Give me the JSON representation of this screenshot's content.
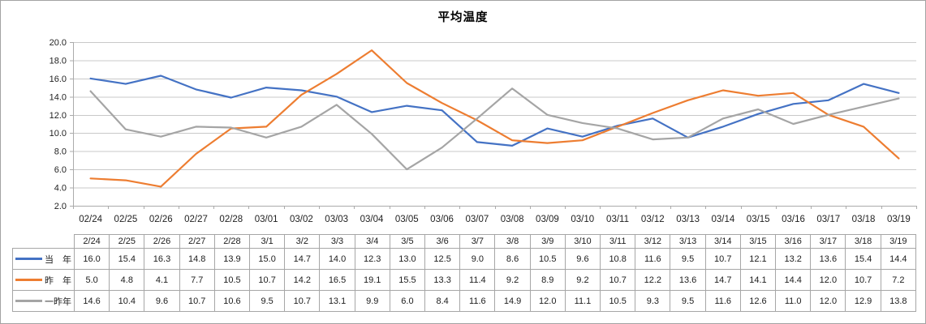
{
  "chart_data": {
    "type": "line",
    "title": "平均温度",
    "x_axis_labels": [
      "02/24",
      "02/25",
      "02/26",
      "02/27",
      "02/28",
      "03/01",
      "03/02",
      "03/03",
      "03/04",
      "03/05",
      "03/06",
      "03/07",
      "03/08",
      "03/09",
      "03/10",
      "03/11",
      "03/12",
      "03/13",
      "03/14",
      "03/15",
      "03/16",
      "03/17",
      "03/18",
      "03/19"
    ],
    "categories": [
      "2/24",
      "2/25",
      "2/26",
      "2/27",
      "2/28",
      "3/1",
      "3/2",
      "3/3",
      "3/4",
      "3/5",
      "3/6",
      "3/7",
      "3/8",
      "3/9",
      "3/10",
      "3/11",
      "3/12",
      "3/13",
      "3/14",
      "3/15",
      "3/16",
      "3/17",
      "3/18",
      "3/19"
    ],
    "ylim": [
      2.0,
      20.0
    ],
    "ytick_step": 2.0,
    "yticks": [
      2.0,
      4.0,
      6.0,
      8.0,
      10.0,
      12.0,
      14.0,
      16.0,
      18.0,
      20.0
    ],
    "grid": "horizontal",
    "legend_position": "table-left-column",
    "series": [
      {
        "name": "当　年",
        "color": "#4472C4",
        "values": [
          16.0,
          15.4,
          16.3,
          14.8,
          13.9,
          15.0,
          14.7,
          14.0,
          12.3,
          13.0,
          12.5,
          9.0,
          8.6,
          10.5,
          9.6,
          10.8,
          11.6,
          9.5,
          10.7,
          12.1,
          13.2,
          13.6,
          15.4,
          14.4
        ]
      },
      {
        "name": "昨　年",
        "color": "#ED7D31",
        "values": [
          5.0,
          4.8,
          4.1,
          7.7,
          10.5,
          10.7,
          14.2,
          16.5,
          19.1,
          15.5,
          13.3,
          11.4,
          9.2,
          8.9,
          9.2,
          10.7,
          12.2,
          13.6,
          14.7,
          14.1,
          14.4,
          12.0,
          10.7,
          7.2
        ]
      },
      {
        "name": "一昨年",
        "color": "#A5A5A5",
        "values": [
          14.6,
          10.4,
          9.6,
          10.7,
          10.6,
          9.5,
          10.7,
          13.1,
          9.9,
          6.0,
          8.4,
          11.6,
          14.9,
          12.0,
          11.1,
          10.5,
          9.3,
          9.5,
          11.6,
          12.6,
          11.0,
          12.0,
          12.9,
          13.8
        ]
      }
    ],
    "colors": {
      "gridline": "#c9c9c9",
      "axis": "#ababab",
      "table_border": "#a6a6a6",
      "label_text": "#1f1f1f"
    }
  }
}
